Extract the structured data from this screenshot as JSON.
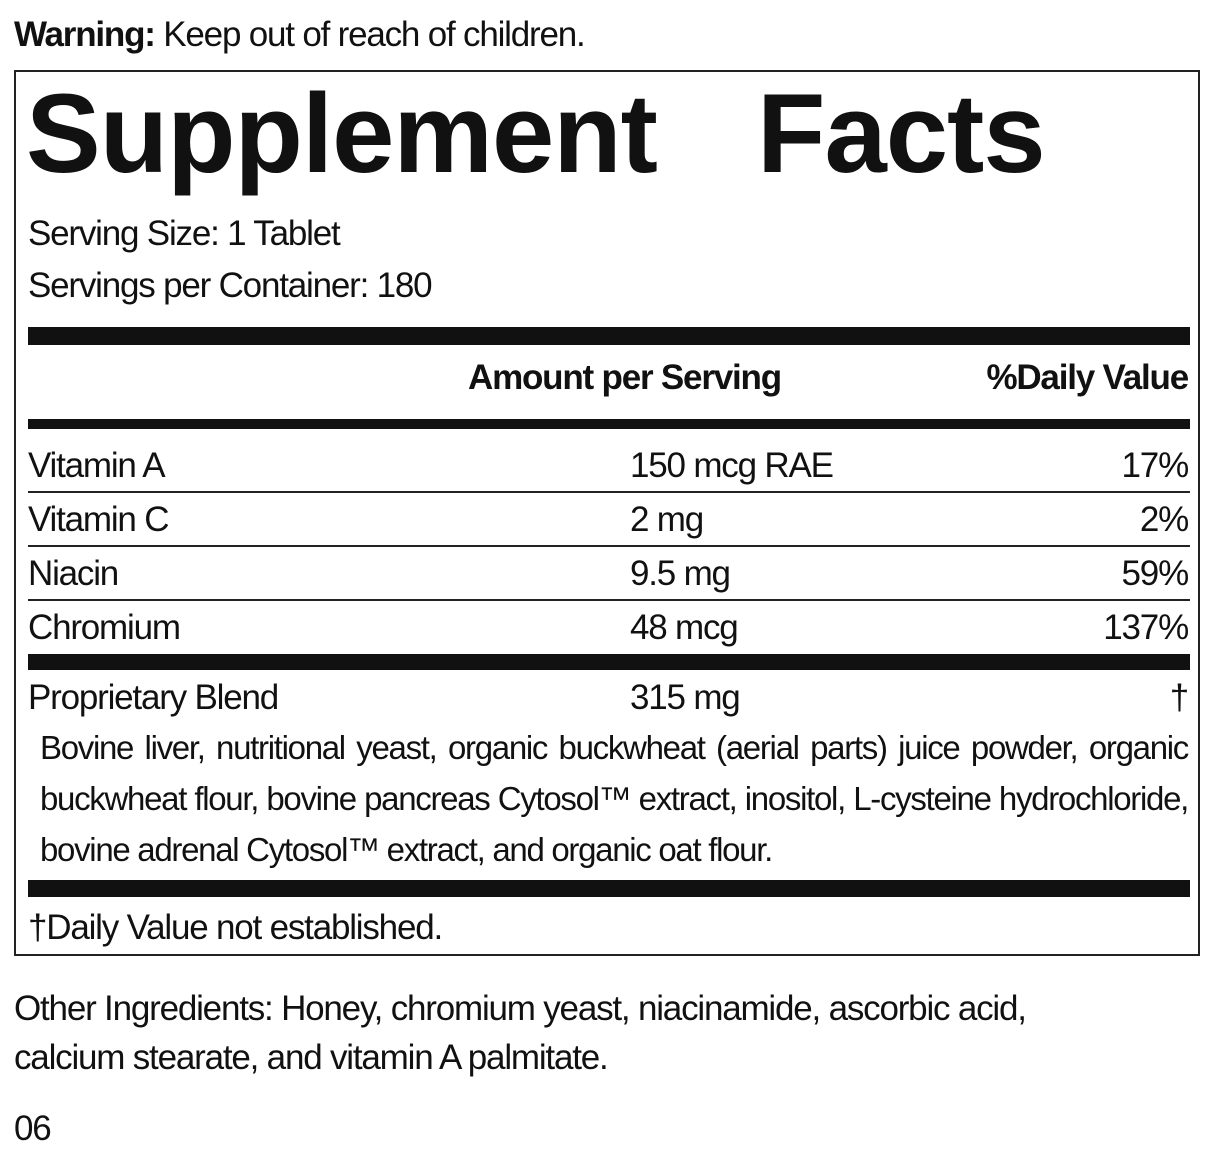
{
  "warning": {
    "label": "Warning:",
    "text": " Keep out of reach of children."
  },
  "title": "Supplement Facts",
  "serving_size": "Serving Size: 1 Tablet",
  "servings_per_container": "Servings per Container: 180",
  "headers": {
    "amount": "Amount per Serving",
    "dv": "%Daily Value"
  },
  "rows": [
    {
      "name": "Vitamin A",
      "amount": "150 mcg RAE",
      "dv": "17%"
    },
    {
      "name": "Vitamin C",
      "amount": "2 mg",
      "dv": "2%"
    },
    {
      "name": "Niacin",
      "amount": "9.5 mg",
      "dv": "59%"
    },
    {
      "name": "Chromium",
      "amount": "48 mcg",
      "dv": "137%"
    }
  ],
  "blend": {
    "name": "Proprietary Blend",
    "amount": "315 mg",
    "dv": "†",
    "ingredients": "Bovine liver, nutritional yeast, organic buckwheat (aerial parts) juice powder, organic buckwheat flour, bovine pancreas Cytosol™ extract, inositol, L-cysteine hydrochloride, bovine adrenal Cytosol™ extract, and organic oat flour."
  },
  "footnote": "†Daily Value not established.",
  "other_ingredients": "Other Ingredients: Honey, chromium yeast, niacinamide, ascorbic acid, calcium stearate, and vitamin A palmitate.",
  "code": "06"
}
